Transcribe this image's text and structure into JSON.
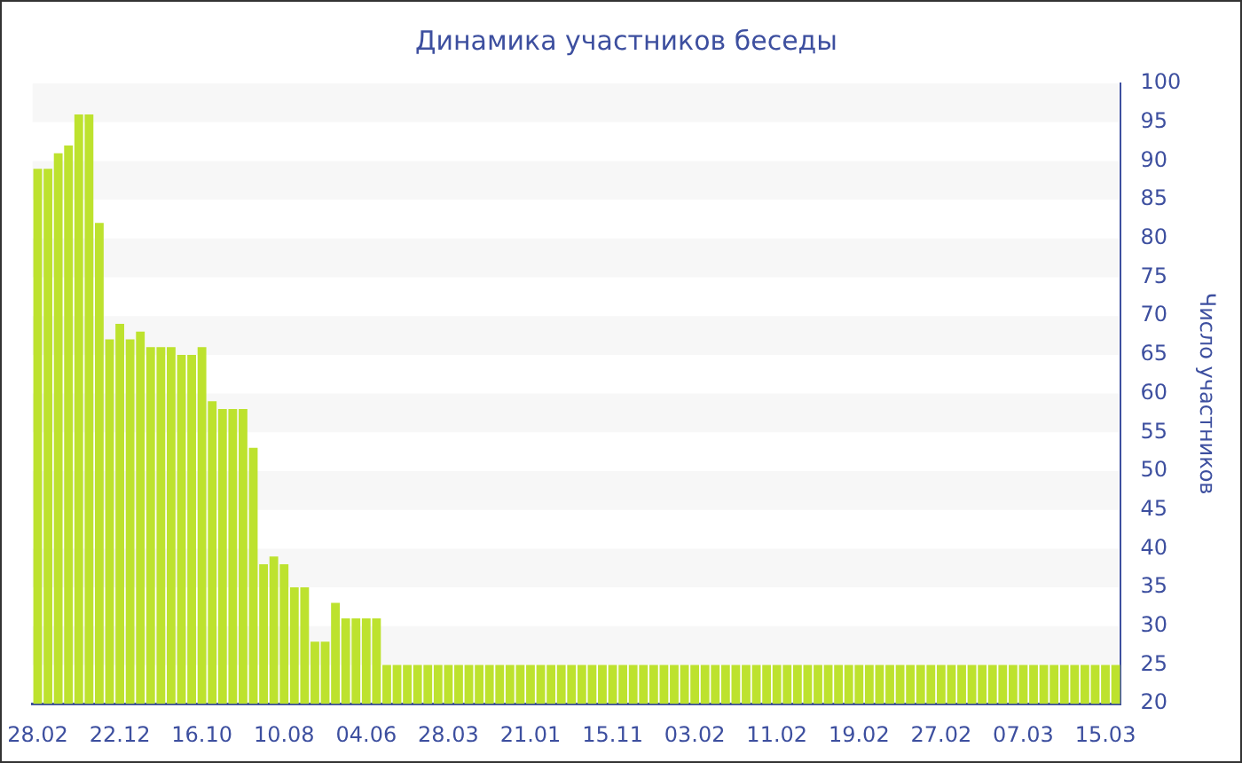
{
  "chart_data": {
    "type": "bar",
    "title": "Динамика участников беседы",
    "ylabel": "Число участников",
    "categories": [
      "28.02",
      null,
      null,
      null,
      null,
      null,
      null,
      null,
      "22.12",
      null,
      null,
      null,
      null,
      null,
      null,
      null,
      "16.10",
      null,
      null,
      null,
      null,
      null,
      null,
      null,
      "10.08",
      null,
      null,
      null,
      null,
      null,
      null,
      null,
      "04.06",
      null,
      null,
      null,
      null,
      null,
      null,
      null,
      "28.03",
      null,
      null,
      null,
      null,
      null,
      null,
      null,
      "21.01",
      null,
      null,
      null,
      null,
      null,
      null,
      null,
      "15.11",
      null,
      null,
      null,
      null,
      null,
      null,
      null,
      "03.02",
      null,
      null,
      null,
      null,
      null,
      null,
      null,
      "11.02",
      null,
      null,
      null,
      null,
      null,
      null,
      null,
      "19.02",
      null,
      null,
      null,
      null,
      null,
      null,
      null,
      "27.02",
      null,
      null,
      null,
      null,
      null,
      null,
      null,
      "07.03",
      null,
      null,
      null,
      null,
      null,
      null,
      null,
      "15.03",
      null
    ],
    "values": [
      89,
      89,
      91,
      92,
      96,
      96,
      82,
      67,
      69,
      67,
      68,
      66,
      66,
      66,
      65,
      65,
      66,
      59,
      58,
      58,
      58,
      53,
      38,
      39,
      38,
      35,
      35,
      28,
      28,
      33,
      31,
      31,
      31,
      31,
      25,
      25,
      25,
      25,
      25,
      25,
      25,
      25,
      25,
      25,
      25,
      25,
      25,
      25,
      25,
      25,
      25,
      25,
      25,
      25,
      25,
      25,
      25,
      25,
      25,
      25,
      25,
      25,
      25,
      25,
      25,
      25,
      25,
      25,
      25,
      25,
      25,
      25,
      25,
      25,
      25,
      25,
      25,
      25,
      25,
      25,
      25,
      25,
      25,
      25,
      25,
      25,
      25,
      25,
      25,
      25,
      25,
      25,
      25,
      25,
      25,
      25,
      25,
      25,
      25,
      25,
      25,
      25,
      25,
      25,
      25,
      25
    ],
    "color": "#bde22e",
    "ylim": [
      20,
      100
    ],
    "yticks": [
      20,
      25,
      30,
      35,
      40,
      45,
      50,
      55,
      60,
      65,
      70,
      75,
      80,
      85,
      90,
      95,
      100
    ],
    "legend": false
  }
}
